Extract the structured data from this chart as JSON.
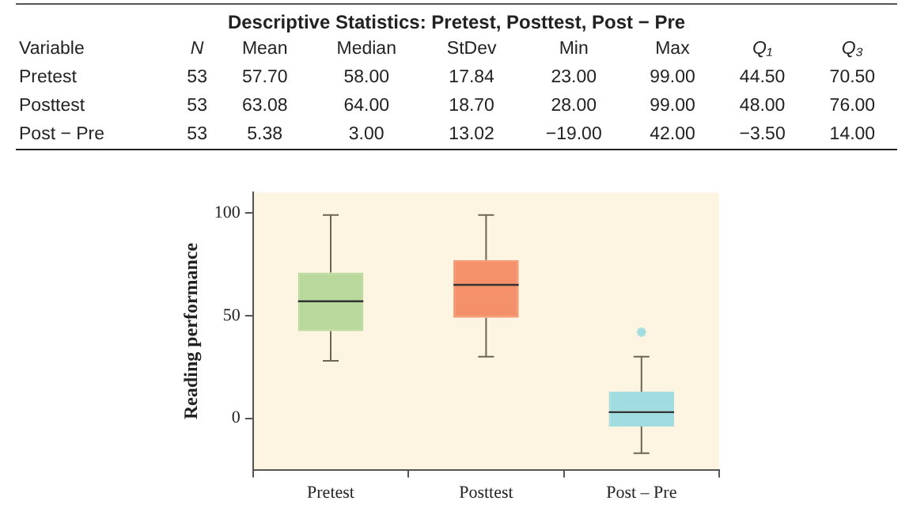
{
  "chart_data": [
    {
      "type": "other",
      "title": "Descriptive Statistics: Pretest, Posttest, Post − Pre",
      "ylabel": "Variable",
      "categories": [
        "N",
        "Mean",
        "Median",
        "StDev",
        "Min",
        "Max",
        "Q₁",
        "Q₃"
      ],
      "y_categories": [
        "Pretest",
        "Posttest",
        "Post − Pre"
      ],
      "cell_labels": [
        [
          "53",
          "57.70",
          "58.00",
          "17.84",
          "23.00",
          "99.00",
          "44.50",
          "70.50"
        ],
        [
          "53",
          "63.08",
          "64.00",
          "18.70",
          "28.00",
          "99.00",
          "48.00",
          "76.00"
        ],
        [
          "53",
          "5.38",
          "3.00",
          "13.02",
          "−19.00",
          "42.00",
          "−3.50",
          "14.00"
        ]
      ]
    },
    {
      "type": "box",
      "ylabel": "Reading performance",
      "categories": [
        "Pretest",
        "Posttest",
        "Post – Pre"
      ],
      "boxes": [
        {
          "low": 28,
          "q1": 42.5,
          "median": 57,
          "q3": 71,
          "high": 99
        },
        {
          "low": 30,
          "q1": 49,
          "median": 65,
          "q3": 77,
          "high": 99
        },
        {
          "low": -17,
          "q1": -4,
          "median": 3,
          "q3": 13,
          "high": 30,
          "outliers": [
            42
          ]
        }
      ],
      "colors": [
        "#b8d99b",
        "#f4916a",
        "#a0dce0"
      ],
      "ylim": [
        -25,
        110
      ],
      "yticks": [
        0,
        50,
        100
      ],
      "grid": false,
      "legend": false
    }
  ]
}
